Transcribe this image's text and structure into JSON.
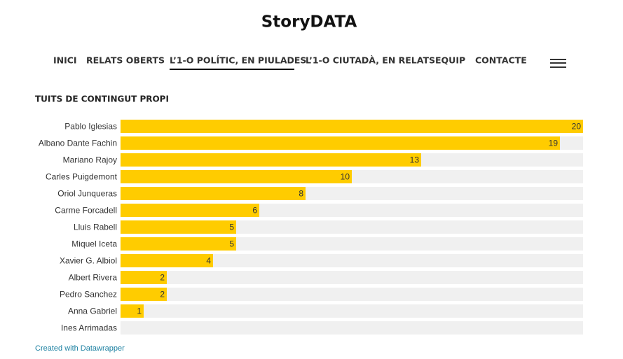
{
  "header": {
    "title": "StoryDATA"
  },
  "nav": [
    "INICI",
    "RELATS OBERTS",
    "L’1-O POLÍTIC, EN PIULADES",
    "L’1-O CIUTADÀ, EN RELATS",
    "EQUIP",
    "CONTACTE"
  ],
  "chart_data": {
    "type": "bar",
    "orientation": "horizontal",
    "title": "TUITS DE CONTINGUT PROPI",
    "categories": [
      "Pablo Iglesias",
      "Albano Dante Fachin",
      "Mariano Rajoy",
      "Carles Puigdemont",
      "Oriol Junqueras",
      "Carme Forcadell",
      "Lluis Rabell",
      "Miquel Iceta",
      "Xavier G. Albiol",
      "Albert Rivera",
      "Pedro Sanchez",
      "Anna Gabriel",
      "Ines Arrimadas"
    ],
    "values": [
      20,
      19,
      13,
      10,
      8,
      6,
      5,
      5,
      4,
      2,
      2,
      1,
      0
    ],
    "color": "#ffcc00",
    "track_color": "#f0f0f0",
    "xlim": [
      0,
      20
    ]
  },
  "footer": {
    "credit": "Created with Datawrapper"
  }
}
